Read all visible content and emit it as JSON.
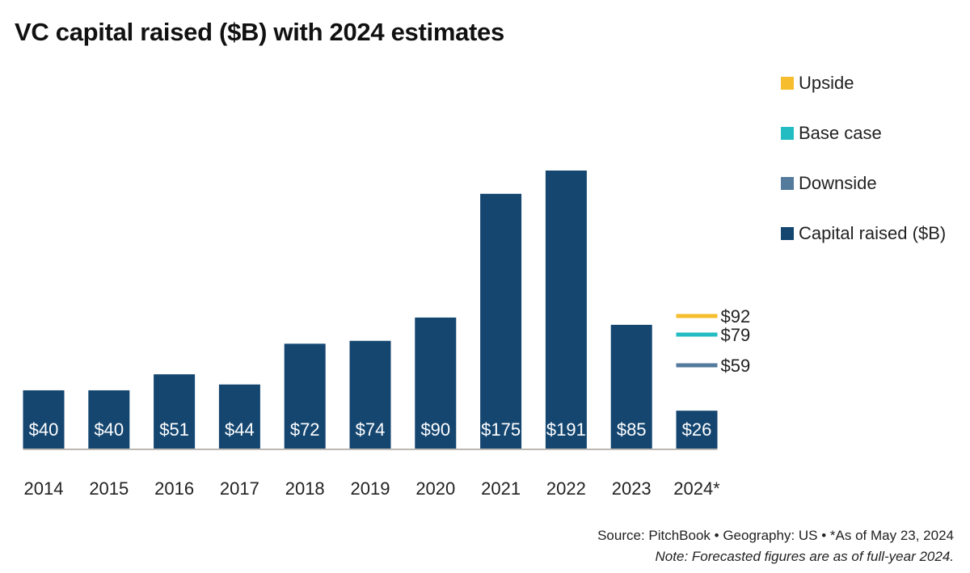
{
  "title": "VC capital raised ($B) with 2024 estimates",
  "legend": [
    {
      "label": "Upside",
      "color": "#F6BE2E"
    },
    {
      "label": "Base case",
      "color": "#23BCC2"
    },
    {
      "label": "Downside",
      "color": "#547A9C"
    },
    {
      "label": "Capital raised ($B)",
      "color": "#144670"
    }
  ],
  "footer": {
    "source": "Source: PitchBook  •  Geography: US  •  *As of May 23, 2024",
    "note": "Note: Forecasted figures are as of full-year 2024."
  },
  "chart_data": {
    "type": "bar",
    "title": "VC capital raised ($B) with 2024 estimates",
    "xlabel": "",
    "ylabel": "",
    "ylim": [
      0,
      191
    ],
    "grid": false,
    "legend_position": "top-right",
    "categories": [
      "2014",
      "2015",
      "2016",
      "2017",
      "2018",
      "2019",
      "2020",
      "2021",
      "2022",
      "2023",
      "2024*"
    ],
    "series": [
      {
        "name": "Capital raised ($B)",
        "color": "#144670",
        "values": [
          40,
          40,
          51,
          44,
          72,
          74,
          90,
          175,
          191,
          85,
          26
        ],
        "labels": [
          "$40",
          "$40",
          "$51",
          "$44",
          "$72",
          "$74",
          "$90",
          "$175",
          "$191",
          "$85",
          "$26"
        ]
      }
    ],
    "estimates": {
      "category": "2024*",
      "lines": [
        {
          "name": "Upside",
          "value": 92,
          "label": "$92",
          "color": "#F6BE2E"
        },
        {
          "name": "Base case",
          "value": 79,
          "label": "$79",
          "color": "#23BCC2"
        },
        {
          "name": "Downside",
          "value": 59,
          "label": "$59",
          "color": "#547A9C"
        }
      ]
    },
    "baseline_color": "#BDB8B2"
  }
}
